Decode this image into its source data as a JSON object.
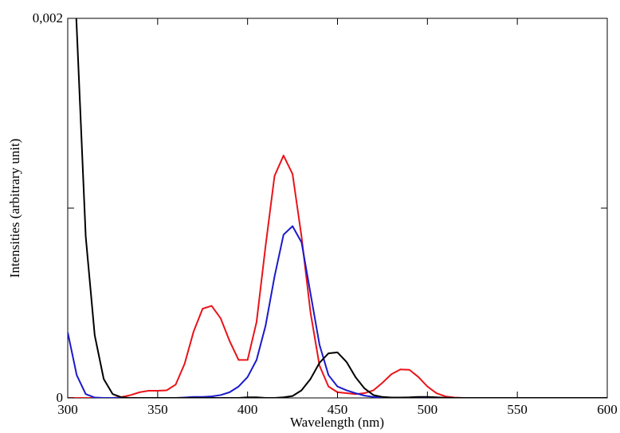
{
  "chart_data": {
    "type": "line",
    "xlabel": "Wavelength (nm)",
    "ylabel": "Intensities (arbitrary unit)",
    "x": [
      300,
      305,
      310,
      315,
      320,
      325,
      330,
      335,
      340,
      345,
      350,
      355,
      360,
      365,
      370,
      375,
      380,
      385,
      390,
      395,
      400,
      405,
      410,
      415,
      420,
      425,
      430,
      435,
      440,
      445,
      450,
      455,
      460,
      465,
      470,
      475,
      480,
      485,
      490,
      495,
      500,
      505,
      510,
      515,
      520,
      525,
      530,
      535,
      540,
      545,
      550,
      555,
      560,
      565,
      570,
      575,
      580,
      585,
      590,
      595,
      600
    ],
    "series": [
      {
        "name": "red",
        "color": "#e8141a",
        "values": [
          0,
          0,
          0,
          0,
          0,
          0,
          5e-06,
          1.5e-05,
          3e-05,
          3.8e-05,
          3.8e-05,
          4e-05,
          7e-05,
          0.00018,
          0.00035,
          0.00047,
          0.000485,
          0.00042,
          0.0003,
          0.0002,
          0.0002,
          0.0004,
          0.0008,
          0.00117,
          0.001277,
          0.00118,
          0.00085,
          0.00045,
          0.00017,
          6e-05,
          3e-05,
          2.5e-05,
          2e-05,
          2.5e-05,
          4e-05,
          8e-05,
          0.000125,
          0.00015,
          0.000148,
          0.00011,
          6e-05,
          2.5e-05,
          8e-06,
          2e-06,
          0,
          0,
          0,
          0,
          0,
          0,
          0,
          0,
          0,
          0,
          0,
          0,
          0,
          0,
          0,
          0,
          0
        ]
      },
      {
        "name": "blue",
        "color": "#1a1acc",
        "values": [
          0.000345,
          0.00012,
          2e-05,
          2e-06,
          0,
          0,
          0,
          0,
          0,
          0,
          0,
          0,
          0,
          2e-06,
          5e-06,
          5e-06,
          8e-06,
          1.5e-05,
          3e-05,
          6e-05,
          0.00011,
          0.0002,
          0.00038,
          0.00064,
          0.00086,
          0.000905,
          0.00082,
          0.00055,
          0.00028,
          0.00012,
          6e-05,
          4e-05,
          2.5e-05,
          1.2e-05,
          5e-06,
          2e-06,
          0,
          0,
          0,
          0,
          0,
          0,
          0,
          0,
          0,
          0,
          0,
          0,
          0,
          0,
          0,
          0,
          0,
          0,
          0,
          0,
          0,
          0,
          0,
          0,
          0
        ]
      },
      {
        "name": "black",
        "color": "#000000",
        "values": [
          0.003,
          0.00195,
          0.00085,
          0.00033,
          0.0001,
          2e-05,
          3e-06,
          0,
          0,
          0,
          0,
          0,
          0,
          0,
          0,
          0,
          0,
          0,
          0,
          0,
          3e-06,
          3e-06,
          0,
          0,
          3e-06,
          1e-05,
          4e-05,
          0.0001,
          0.000185,
          0.000235,
          0.00024,
          0.00019,
          0.00011,
          5e-05,
          1.5e-05,
          5e-06,
          2e-06,
          2e-06,
          3e-06,
          5e-06,
          5e-06,
          3e-06,
          1e-06,
          0,
          0,
          0,
          0,
          0,
          0,
          0,
          0,
          0,
          0,
          0,
          0,
          0,
          0,
          0,
          0,
          0,
          0
        ]
      }
    ],
    "xlim": [
      300,
      600
    ],
    "xticks": [
      300,
      350,
      400,
      450,
      500,
      550,
      600
    ],
    "ylim": [
      0,
      0.002
    ],
    "yticks": [
      0,
      {
        "value": 0.002,
        "label": "0,002"
      }
    ],
    "yminorticks": [
      0.001
    ],
    "legend": false,
    "grid": false
  }
}
